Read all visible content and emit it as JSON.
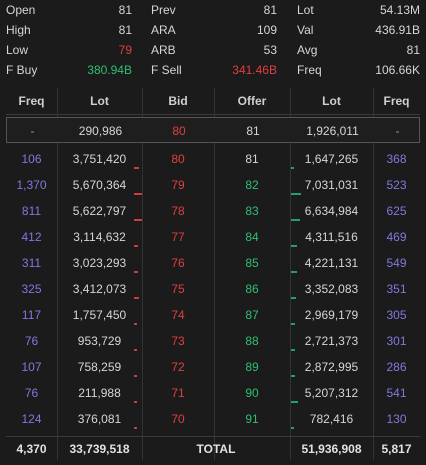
{
  "summary": {
    "rows": [
      [
        {
          "label": "Open",
          "value": "81"
        },
        {
          "label": "Prev",
          "value": "81"
        },
        {
          "label": "Lot",
          "value": "54.13M"
        }
      ],
      [
        {
          "label": "High",
          "value": "81"
        },
        {
          "label": "ARA",
          "value": "109"
        },
        {
          "label": "Val",
          "value": "436.91B"
        }
      ],
      [
        {
          "label": "Low",
          "value": "79"
        },
        {
          "label": "ARB",
          "value": "53"
        },
        {
          "label": "Avg",
          "value": "81"
        }
      ],
      [
        {
          "label": "F Buy",
          "value": "380.94B"
        },
        {
          "label": "F Sell",
          "value": "341.46B"
        },
        {
          "label": "Freq",
          "value": "106.66K"
        }
      ]
    ]
  },
  "colors": {
    "up": "#2fbf71",
    "down": "#e23e3e",
    "freq": "#8079e0",
    "neutral": "#d6d6d6"
  },
  "book": {
    "headers": [
      "Freq",
      "Lot",
      "Bid",
      "Offer",
      "Lot",
      "Freq"
    ],
    "prev_row": {
      "bid_freq": "-",
      "bid_lot": "290,986",
      "bid": "80",
      "offer": "81",
      "offer_lot": "1,926,011",
      "offer_freq": "-"
    },
    "rows": [
      {
        "bid_freq": "106",
        "bid_lot": "3,751,420",
        "bid": "80",
        "offer": "81",
        "offer_lot": "1,647,265",
        "offer_freq": "368"
      },
      {
        "bid_freq": "1,370",
        "bid_lot": "5,670,364",
        "bid": "79",
        "offer": "82",
        "offer_lot": "7,031,031",
        "offer_freq": "523"
      },
      {
        "bid_freq": "811",
        "bid_lot": "5,622,797",
        "bid": "78",
        "offer": "83",
        "offer_lot": "6,634,984",
        "offer_freq": "625"
      },
      {
        "bid_freq": "412",
        "bid_lot": "3,114,632",
        "bid": "77",
        "offer": "84",
        "offer_lot": "4,311,516",
        "offer_freq": "469"
      },
      {
        "bid_freq": "311",
        "bid_lot": "3,023,293",
        "bid": "76",
        "offer": "85",
        "offer_lot": "4,221,131",
        "offer_freq": "549"
      },
      {
        "bid_freq": "325",
        "bid_lot": "3,412,073",
        "bid": "75",
        "offer": "86",
        "offer_lot": "3,352,083",
        "offer_freq": "351"
      },
      {
        "bid_freq": "117",
        "bid_lot": "1,757,450",
        "bid": "74",
        "offer": "87",
        "offer_lot": "2,969,179",
        "offer_freq": "305"
      },
      {
        "bid_freq": "76",
        "bid_lot": "953,729",
        "bid": "73",
        "offer": "88",
        "offer_lot": "2,721,373",
        "offer_freq": "301"
      },
      {
        "bid_freq": "107",
        "bid_lot": "758,259",
        "bid": "72",
        "offer": "89",
        "offer_lot": "2,872,995",
        "offer_freq": "286"
      },
      {
        "bid_freq": "76",
        "bid_lot": "211,988",
        "bid": "71",
        "offer": "90",
        "offer_lot": "5,207,312",
        "offer_freq": "541"
      },
      {
        "bid_freq": "124",
        "bid_lot": "376,081",
        "bid": "70",
        "offer": "91",
        "offer_lot": "782,416",
        "offer_freq": "130"
      }
    ],
    "total": {
      "bid_freq": "4,370",
      "bid_lot": "33,739,518",
      "label": "TOTAL",
      "offer_lot": "51,936,908",
      "offer_freq": "5,817"
    }
  }
}
